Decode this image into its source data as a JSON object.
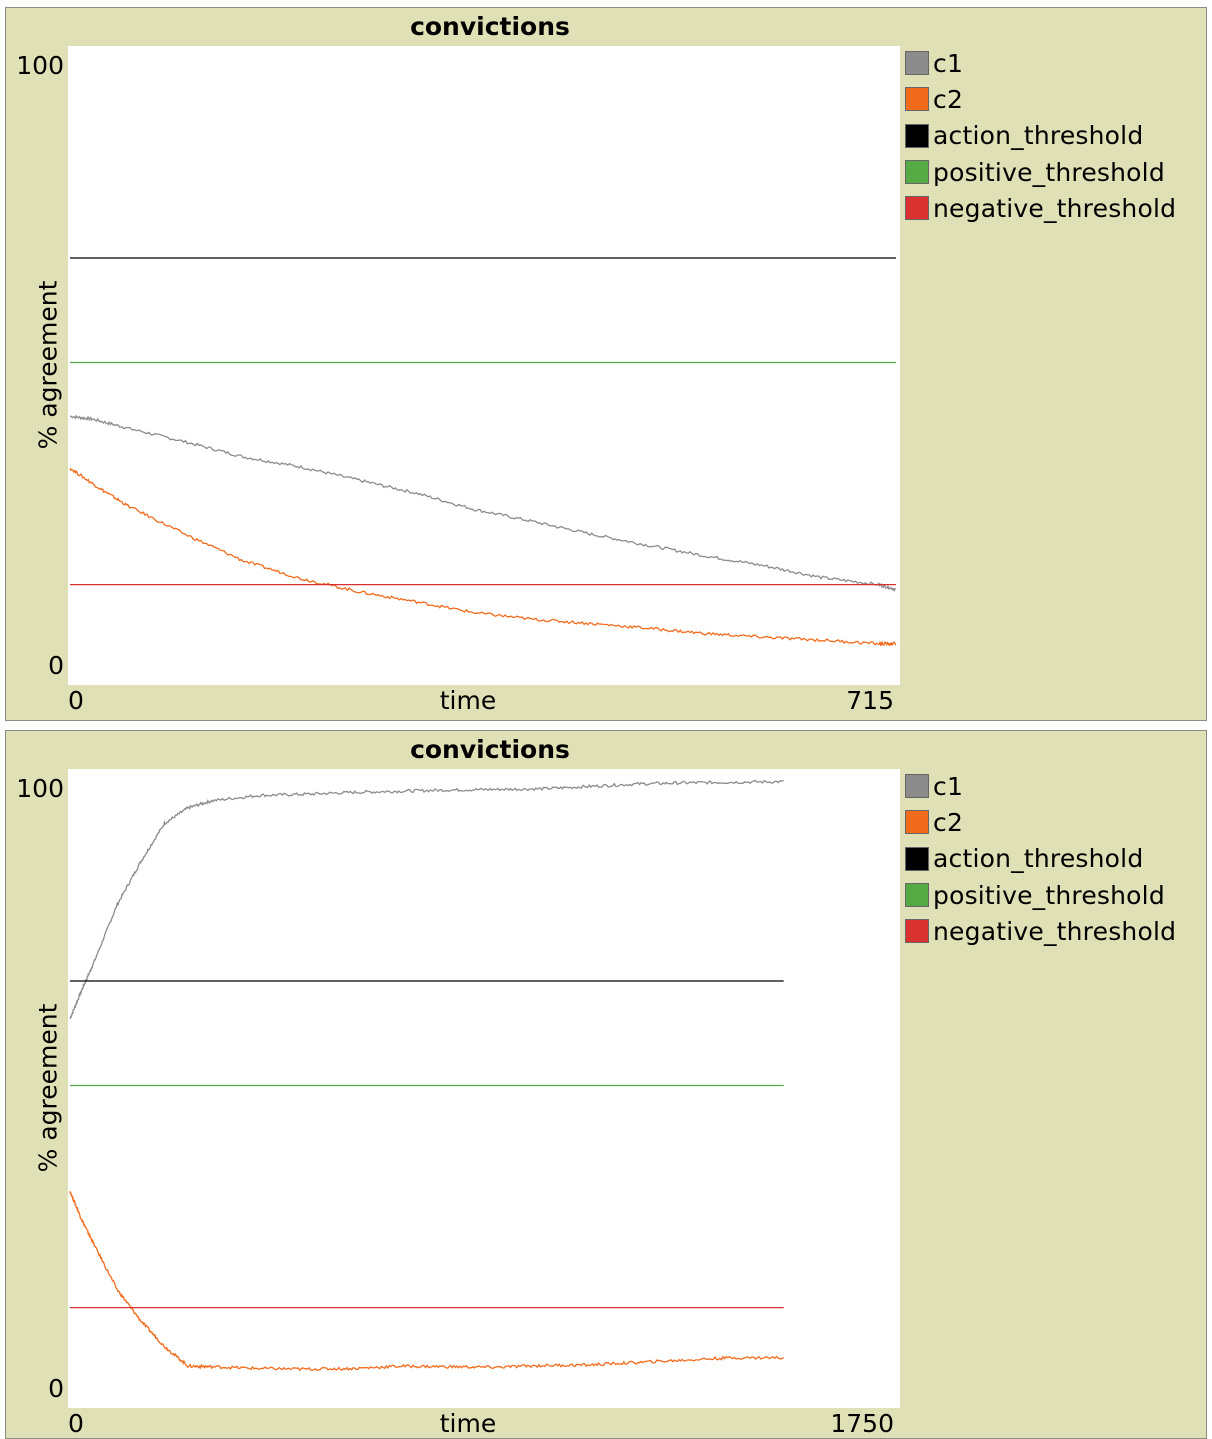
{
  "chart_data": [
    {
      "type": "line",
      "title": "convictions",
      "xlabel": "time",
      "ylabel": "% agreement",
      "xlim": [
        0,
        715
      ],
      "ylim": [
        0,
        100
      ],
      "x_tick_labels": [
        "0",
        "715"
      ],
      "y_tick_labels": [
        "100",
        "0"
      ],
      "legend_position": "right",
      "series": [
        {
          "name": "c1",
          "color": "#8c8c8c",
          "points": [
            [
              0,
              41.5
            ],
            [
              20,
              41
            ],
            [
              50,
              39.5
            ],
            [
              100,
              37.2
            ],
            [
              150,
              34.7
            ],
            [
              200,
              33.0
            ],
            [
              250,
              30.8
            ],
            [
              300,
              28.6
            ],
            [
              350,
              25.9
            ],
            [
              400,
              23.9
            ],
            [
              450,
              21.8
            ],
            [
              500,
              19.9
            ],
            [
              550,
              18.1
            ],
            [
              600,
              16.5
            ],
            [
              650,
              14.5
            ],
            [
              700,
              13.3
            ],
            [
              715,
              12.5
            ]
          ]
        },
        {
          "name": "c2",
          "color": "#f06b1c",
          "points": [
            [
              0,
              32.8
            ],
            [
              25,
              29.5
            ],
            [
              50,
              26.5
            ],
            [
              100,
              21.7
            ],
            [
              150,
              17.3
            ],
            [
              200,
              14.3
            ],
            [
              250,
              12.1
            ],
            [
              300,
              10.4
            ],
            [
              350,
              8.6
            ],
            [
              400,
              7.5
            ],
            [
              450,
              6.8
            ],
            [
              500,
              6.0
            ],
            [
              550,
              5.1
            ],
            [
              600,
              4.5
            ],
            [
              650,
              4.0
            ],
            [
              700,
              3.4
            ],
            [
              715,
              3.4
            ]
          ]
        },
        {
          "name": "action_threshold",
          "color": "#000000",
          "points": [
            [
              0,
              68
            ],
            [
              715,
              68
            ]
          ]
        },
        {
          "name": "positive_threshold",
          "color": "#55aa44",
          "points": [
            [
              0,
              50.5
            ],
            [
              715,
              50.5
            ]
          ]
        },
        {
          "name": "negative_threshold",
          "color": "#d93030",
          "points": [
            [
              0,
              13.3
            ],
            [
              715,
              13.3
            ]
          ]
        }
      ]
    },
    {
      "type": "line",
      "title": "convictions",
      "xlabel": "time",
      "ylabel": "% agreement",
      "xlim": [
        0,
        1750
      ],
      "ylim": [
        0,
        100
      ],
      "x_tick_labels": [
        "0",
        "1750"
      ],
      "y_tick_labels": [
        "100",
        "0"
      ],
      "legend_position": "right",
      "series": [
        {
          "name": "c1",
          "color": "#8c8c8c",
          "points": [
            [
              0,
              61.7
            ],
            [
              25,
              66.5
            ],
            [
              50,
              71
            ],
            [
              100,
              80.8
            ],
            [
              150,
              88
            ],
            [
              200,
              94.4
            ],
            [
              250,
              97.0
            ],
            [
              300,
              98.2
            ],
            [
              400,
              99.1
            ],
            [
              500,
              99.3
            ],
            [
              600,
              99.6
            ],
            [
              700,
              99.8
            ],
            [
              800,
              100.0
            ],
            [
              900,
              100.1
            ],
            [
              1000,
              100.2
            ],
            [
              1100,
              100.6
            ],
            [
              1200,
              101.0
            ],
            [
              1300,
              101.2
            ],
            [
              1400,
              101.3
            ],
            [
              1512,
              101.4
            ]
          ]
        },
        {
          "name": "c2",
          "color": "#f06b1c",
          "points": [
            [
              0,
              32.8
            ],
            [
              25,
              28
            ],
            [
              50,
              24
            ],
            [
              100,
              16.3
            ],
            [
              150,
              11.1
            ],
            [
              200,
              6.8
            ],
            [
              250,
              3.5
            ],
            [
              300,
              3.4
            ],
            [
              400,
              3.1
            ],
            [
              500,
              3.0
            ],
            [
              600,
              3.1
            ],
            [
              700,
              3.5
            ],
            [
              800,
              3.4
            ],
            [
              900,
              3.3
            ],
            [
              1000,
              3.6
            ],
            [
              1100,
              3.7
            ],
            [
              1200,
              4.1
            ],
            [
              1300,
              4.5
            ],
            [
              1400,
              4.9
            ],
            [
              1512,
              4.9
            ]
          ]
        },
        {
          "name": "action_threshold",
          "color": "#000000",
          "points": [
            [
              0,
              68
            ],
            [
              1512,
              68
            ]
          ]
        },
        {
          "name": "positive_threshold",
          "color": "#55aa44",
          "points": [
            [
              0,
              50.5
            ],
            [
              1512,
              50.5
            ]
          ]
        },
        {
          "name": "negative_threshold",
          "color": "#d93030",
          "points": [
            [
              0,
              13.3
            ],
            [
              1512,
              13.3
            ]
          ]
        }
      ]
    }
  ]
}
